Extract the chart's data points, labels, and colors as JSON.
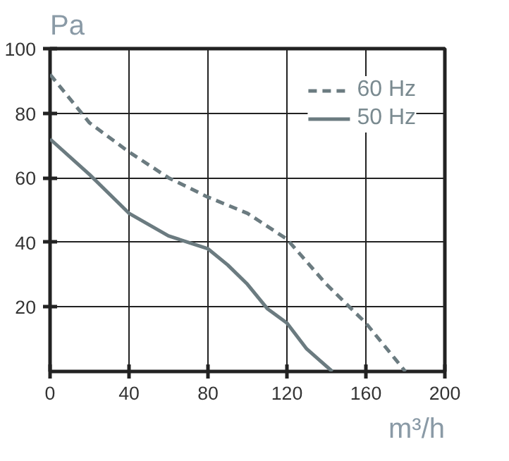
{
  "chart_data": {
    "type": "line",
    "xlabel": "m³/h",
    "ylabel": "Pa",
    "xlim": [
      0,
      200
    ],
    "ylim": [
      0,
      100
    ],
    "xticks": [
      0,
      40,
      80,
      120,
      160,
      200
    ],
    "yticks": [
      20,
      40,
      60,
      80,
      100
    ],
    "grid": true,
    "legend": "top right",
    "series": [
      {
        "name": "60 Hz",
        "color": "#6b7b80",
        "line_style": "dashed",
        "x": [
          0,
          20,
          40,
          60,
          80,
          100,
          120,
          140,
          160,
          180
        ],
        "values": [
          92,
          77,
          68,
          60,
          54,
          49,
          41,
          27,
          15,
          0
        ]
      },
      {
        "name": "50 Hz",
        "color": "#6b7b80",
        "line_style": "solid",
        "x": [
          0,
          20,
          40,
          60,
          80,
          90,
          100,
          110,
          120,
          130,
          143
        ],
        "values": [
          72,
          61,
          49,
          42,
          38,
          33,
          27,
          19.5,
          15,
          7,
          0
        ]
      }
    ]
  }
}
